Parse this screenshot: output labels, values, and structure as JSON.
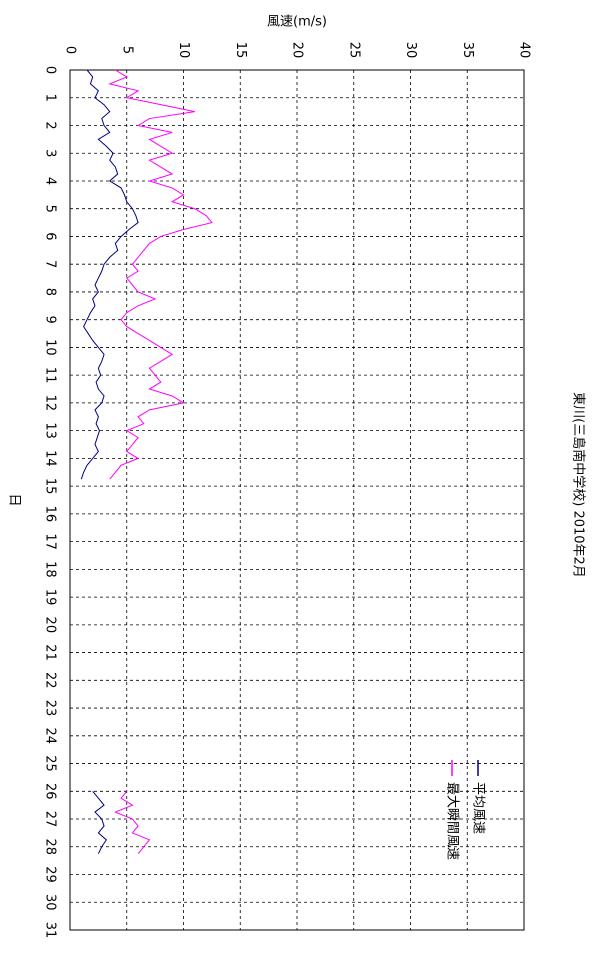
{
  "chart_data": {
    "type": "line",
    "title": "東川(三島南中学校) 2010年2月",
    "x_label": "日",
    "y_label": "風速(m/s)",
    "x": [
      0,
      0.25,
      0.5,
      0.75,
      1,
      1.25,
      1.5,
      1.75,
      2,
      2.25,
      2.5,
      2.75,
      3,
      3.25,
      3.5,
      3.75,
      4,
      4.25,
      4.5,
      4.75,
      5,
      5.25,
      5.5,
      5.75,
      6,
      6.25,
      6.5,
      6.75,
      7,
      7.25,
      7.5,
      7.75,
      8,
      8.25,
      8.5,
      8.75,
      9,
      9.25,
      9.5,
      9.75,
      10,
      10.25,
      10.5,
      10.75,
      11,
      11.25,
      11.5,
      11.75,
      12,
      12.25,
      12.5,
      12.75,
      13,
      13.25,
      13.5,
      13.75,
      14,
      14.25,
      14.5,
      14.75,
      15,
      26,
      26.25,
      26.5,
      26.75,
      27,
      27.25,
      27.5,
      27.75,
      28,
      28.25
    ],
    "series": [
      {
        "name": "平均風速",
        "color": "#000080",
        "values": [
          1.5,
          2,
          1.8,
          2.5,
          2.2,
          3,
          3.5,
          2.8,
          3,
          3.5,
          2.5,
          3.2,
          3.8,
          3.5,
          4,
          4.2,
          3.5,
          4.5,
          4.8,
          5,
          5.5,
          5.8,
          6,
          5.2,
          4.5,
          4,
          4.2,
          3.5,
          3,
          2.8,
          2.5,
          2.2,
          2.5,
          2,
          2.2,
          1.8,
          1.5,
          1.2,
          1.6,
          2,
          2.5,
          3,
          2.8,
          2.5,
          2.7,
          2.3,
          2.5,
          3,
          2.8,
          2.2,
          2.5,
          2.3,
          2.6,
          2.4,
          2.2,
          2.5,
          2,
          1.5,
          1.2,
          1,
          null,
          2,
          2.5,
          3,
          2.2,
          2.8,
          3,
          2.5,
          3.2,
          2.8,
          2.5
        ]
      },
      {
        "name": "最大瞬間風速",
        "color": "#ff00ff",
        "values": [
          4,
          5,
          3.5,
          6,
          5,
          8,
          11,
          7,
          6,
          9,
          7,
          8,
          9,
          7,
          8,
          9,
          7,
          9,
          10,
          9,
          11,
          12,
          12.5,
          10,
          8,
          7,
          6.5,
          6,
          5.5,
          6,
          5,
          5.5,
          6,
          7.5,
          6,
          5,
          4.5,
          5,
          6,
          7,
          8,
          9,
          8,
          7,
          7.5,
          8,
          7,
          9,
          10,
          7,
          6,
          6.5,
          5,
          6,
          5.5,
          5,
          6,
          4.5,
          4,
          3.5,
          null,
          5,
          4.5,
          5.5,
          4,
          5.5,
          6,
          5.5,
          7,
          6.5,
          6
        ]
      }
    ],
    "xlim": [
      0,
      31
    ],
    "xticks": [
      0,
      1,
      2,
      3,
      4,
      5,
      6,
      7,
      8,
      9,
      10,
      11,
      12,
      13,
      14,
      15,
      16,
      17,
      18,
      19,
      20,
      21,
      22,
      23,
      24,
      25,
      26,
      27,
      28,
      29,
      30,
      31
    ],
    "ylim": [
      0,
      40
    ],
    "yticks": [
      0,
      5,
      10,
      15,
      20,
      25,
      30,
      35,
      40
    ],
    "grid": true
  }
}
